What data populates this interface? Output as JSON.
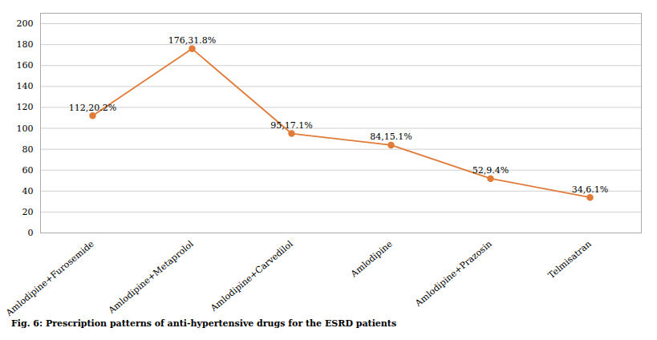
{
  "chart_data": {
    "type": "line",
    "caption": "Fig. 6: Prescription patterns of anti-hypertensive drugs for the ESRD patients",
    "categories": [
      "Amlodipine+Furosemide",
      "Amlodipine+Metaprolol",
      "Amlodipine+Carvedilol",
      "Amlodipine",
      "Amlodipine+Prazosin",
      "Telmisatran"
    ],
    "values": [
      112,
      176,
      95,
      84,
      52,
      34
    ],
    "value_labels": [
      "112,20.2%",
      "176,31.8%",
      "95,17.1%",
      "84,15.1%",
      "52,9.4%",
      "34,6.1%"
    ],
    "data_labels": true,
    "color": "#e07b39",
    "marker": "circle",
    "ylim": [
      0,
      210
    ],
    "yticks": [
      0,
      20,
      40,
      60,
      80,
      100,
      120,
      140,
      160,
      180,
      200
    ],
    "grid": true
  }
}
